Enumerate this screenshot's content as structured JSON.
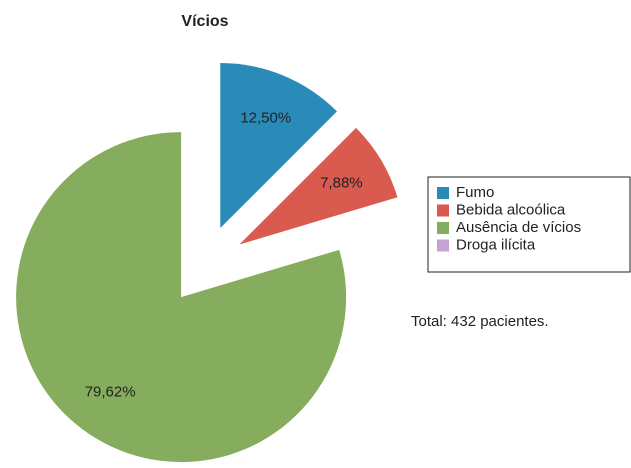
{
  "chart_data": {
    "type": "pie",
    "title": "Vícios",
    "categories": [
      "Fumo",
      "Bebida alcoólica",
      "Ausência de vícios",
      "Droga ilícita"
    ],
    "values": [
      12.5,
      7.88,
      79.62,
      0
    ],
    "value_labels": [
      "12,50%",
      "7,88%",
      "79,62%",
      null
    ],
    "colors": [
      "#2a8ab8",
      "#d95a4e",
      "#86ad5e",
      "#c3a4d0"
    ],
    "legend": "right",
    "annotation": "Total: 432 pacientes."
  }
}
